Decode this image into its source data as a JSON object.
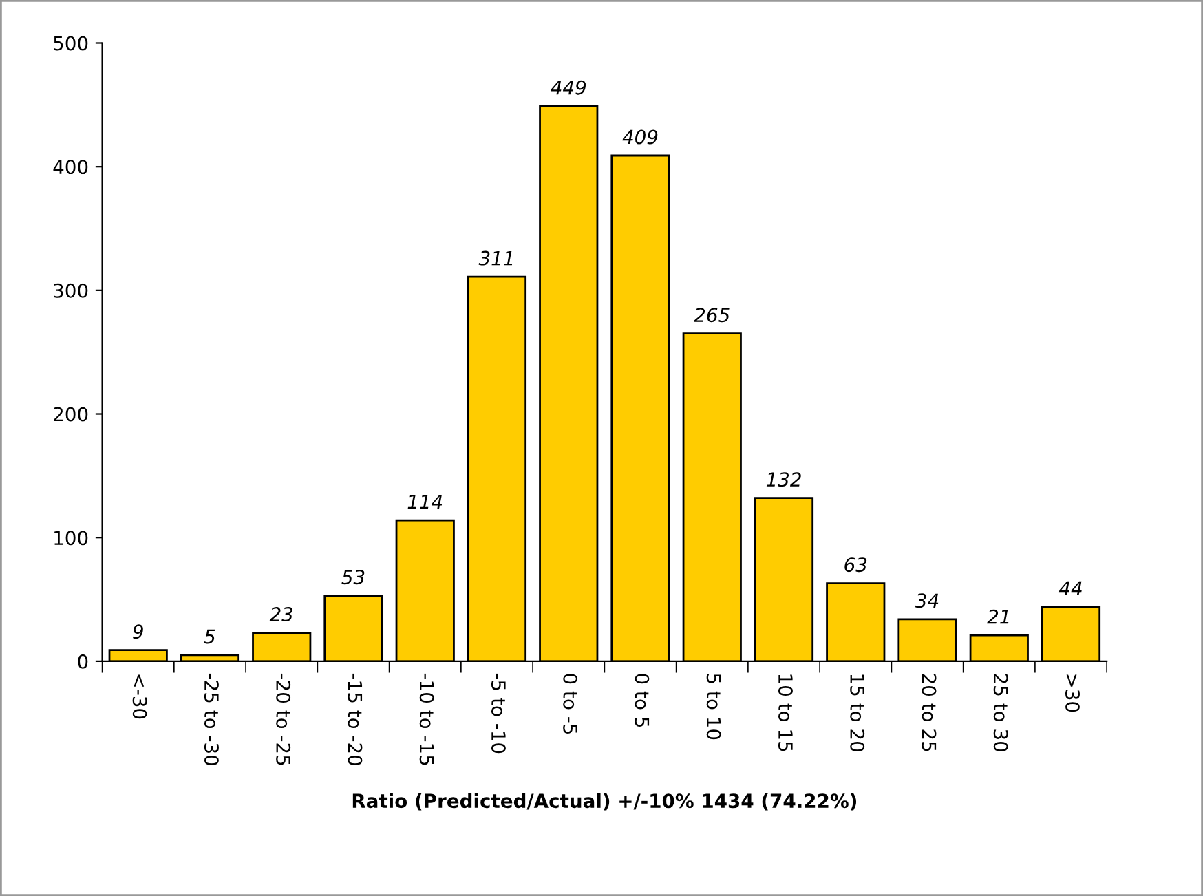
{
  "chart_data": {
    "type": "bar",
    "xlabel": "Ratio (Predicted/Actual) +/-10% 1434 (74.22%)",
    "categories": [
      "<-30",
      "-25 to -30",
      "-20 to -25",
      "-15 to -20",
      "-10 to -15",
      "-5 to -10",
      "0 to -5",
      "0 to 5",
      "5 to 10",
      "10 to 15",
      "15 to 20",
      "20 to 25",
      "25 to 30",
      ">30"
    ],
    "values": [
      9,
      5,
      23,
      53,
      114,
      311,
      449,
      409,
      265,
      132,
      63,
      34,
      21,
      44
    ],
    "color": "#ffcc00",
    "ylim": [
      0,
      500
    ],
    "yticks": [
      0,
      100,
      200,
      300,
      400,
      500
    ],
    "grid": false,
    "data_labels": true
  }
}
